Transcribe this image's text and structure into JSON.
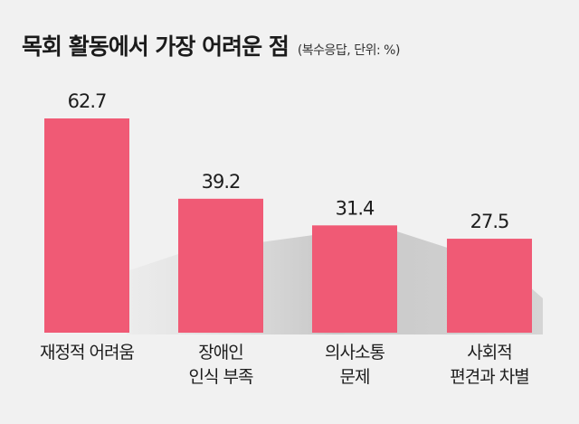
{
  "title": "목회 활동에서 가장 어려운 점",
  "subtitle": "(복수응답, 단위: %)",
  "colors": {
    "bar": "#f05a75",
    "background": "#f1f1f1",
    "shadow": "#c4c4c4"
  },
  "chart_data": {
    "type": "bar",
    "title": "목회 활동에서 가장 어려운 점",
    "subtitle": "(복수응답, 단위: %)",
    "categories": [
      [
        "재정적 어려움"
      ],
      [
        "장애인",
        "인식 부족"
      ],
      [
        "의사소통",
        "문제"
      ],
      [
        "사회적",
        "편견과 차별"
      ]
    ],
    "values": [
      62.7,
      39.2,
      31.4,
      27.5
    ],
    "value_labels": [
      "62.7",
      "39.2",
      "31.4",
      "27.5"
    ],
    "unit": "%",
    "ylim": [
      0,
      62.7
    ],
    "grid": false,
    "legend": "none"
  }
}
